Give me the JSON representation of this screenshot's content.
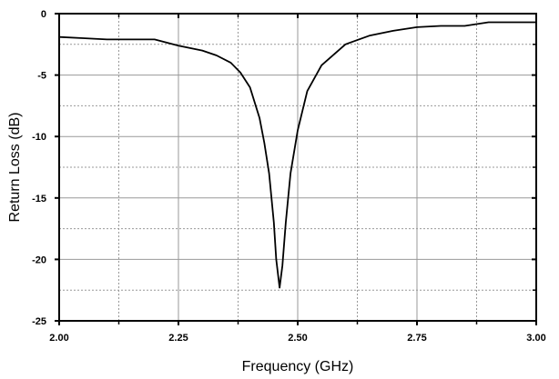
{
  "chart_data": {
    "type": "line",
    "title": "",
    "xlabel": "Frequency (GHz)",
    "ylabel": "Return Loss (dB)",
    "xlim": [
      2.0,
      3.0
    ],
    "ylim": [
      -25,
      0
    ],
    "xticks": [
      2.0,
      2.25,
      2.5,
      2.75,
      3.0
    ],
    "xtick_labels": [
      "2.00",
      "2.25",
      "2.50",
      "2.75",
      "3.00"
    ],
    "yticks": [
      0,
      -5,
      -10,
      -15,
      -20,
      -25
    ],
    "ytick_labels": [
      "0",
      "-5",
      "-10",
      "-15",
      "-20",
      "-25"
    ],
    "grid": true,
    "legend": "none",
    "series": [
      {
        "name": "Return Loss",
        "color": "#000000",
        "x": [
          2.0,
          2.05,
          2.1,
          2.15,
          2.2,
          2.25,
          2.3,
          2.33,
          2.36,
          2.38,
          2.4,
          2.42,
          2.43,
          2.44,
          2.45,
          2.455,
          2.462,
          2.468,
          2.475,
          2.485,
          2.5,
          2.52,
          2.55,
          2.6,
          2.65,
          2.7,
          2.75,
          2.8,
          2.85,
          2.9,
          2.95,
          3.0
        ],
        "y": [
          -1.9,
          -2.0,
          -2.1,
          -2.1,
          -2.1,
          -2.6,
          -3.0,
          -3.4,
          -4.0,
          -4.8,
          -6.0,
          -8.5,
          -10.5,
          -13.0,
          -17.0,
          -20.0,
          -22.3,
          -20.5,
          -17.0,
          -13.0,
          -9.5,
          -6.3,
          -4.2,
          -2.5,
          -1.8,
          -1.4,
          -1.1,
          -1.0,
          -1.0,
          -0.7,
          -0.7,
          -0.7
        ]
      }
    ]
  }
}
